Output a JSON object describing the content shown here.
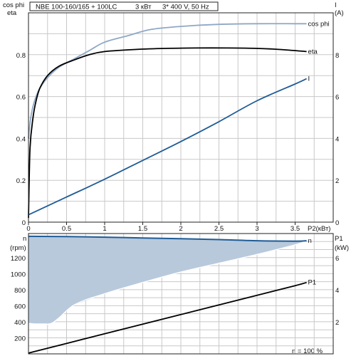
{
  "header": {
    "title": "NBE 100-160/165 + 100LC",
    "power": "3 кВт",
    "supply": "3* 400 V, 50 Hz"
  },
  "colors": {
    "cos_phi": "#8fa8c6",
    "eta": "#000000",
    "current": "#1f5c96",
    "speed": "#1f5c96",
    "speed_fill": "#b8c9dc",
    "p1": "#000000",
    "grid": "#c8c8c8"
  },
  "chart_data": [
    {
      "type": "line",
      "xlabel": "P2(кВт)",
      "ylabel_left": [
        "cos phi",
        "eta"
      ],
      "ylabel_right": [
        "I",
        "(A)"
      ],
      "xlim": [
        0,
        4.0
      ],
      "ylim_left": [
        0,
        1.0
      ],
      "ylim_right": [
        0,
        10
      ],
      "grid": true,
      "x_ticks": [
        "0",
        "0.5",
        "1",
        "1.5",
        "2",
        "2.5",
        "3",
        "3.5"
      ],
      "y_left_ticks": [
        "0",
        "0.2",
        "0.4",
        "0.6",
        "0.8"
      ],
      "y_right_ticks": [
        "0",
        "2",
        "4",
        "6",
        "8"
      ],
      "series": [
        {
          "name": "cos phi",
          "axis": "left",
          "x": [
            0.0,
            0.03,
            0.08,
            0.15,
            0.25,
            0.4,
            0.6,
            0.8,
            1.0,
            1.3,
            1.6,
            2.0,
            2.5,
            3.0,
            3.5,
            3.65
          ],
          "y": [
            0.4,
            0.5,
            0.58,
            0.64,
            0.69,
            0.74,
            0.78,
            0.82,
            0.86,
            0.89,
            0.92,
            0.935,
            0.945,
            0.948,
            0.948,
            0.948
          ]
        },
        {
          "name": "eta",
          "axis": "left",
          "x": [
            0.0,
            0.02,
            0.06,
            0.1,
            0.15,
            0.25,
            0.4,
            0.6,
            0.8,
            1.0,
            1.4,
            1.8,
            2.2,
            2.6,
            3.0,
            3.3,
            3.65
          ],
          "y": [
            0.02,
            0.35,
            0.5,
            0.58,
            0.64,
            0.7,
            0.745,
            0.775,
            0.8,
            0.815,
            0.825,
            0.83,
            0.832,
            0.832,
            0.83,
            0.825,
            0.815
          ]
        },
        {
          "name": "I",
          "axis": "right",
          "x": [
            0.0,
            0.5,
            1.0,
            1.5,
            2.0,
            2.5,
            3.0,
            3.5,
            3.65
          ],
          "y": [
            0.35,
            1.2,
            2.05,
            2.95,
            3.85,
            4.8,
            5.8,
            6.6,
            6.85
          ]
        }
      ]
    },
    {
      "type": "area",
      "ylabel_left": [
        "n",
        "(rpm)"
      ],
      "ylabel_right": [
        "P1",
        "(kW)"
      ],
      "xlim": [
        0,
        4.0
      ],
      "ylim_left": [
        0,
        1500
      ],
      "ylim_right": [
        0,
        7.5
      ],
      "grid": true,
      "y_left_ticks": [
        "200",
        "400",
        "600",
        "800",
        "1000",
        "1200"
      ],
      "y_right_ticks": [
        "2",
        "4",
        "6"
      ],
      "footer": "n = 100 %",
      "series": [
        {
          "name": "n",
          "role": "upper",
          "axis": "left",
          "x": [
            0.0,
            0.5,
            1.0,
            1.5,
            2.0,
            2.5,
            3.0,
            3.5,
            3.65
          ],
          "y": [
            1465,
            1462,
            1455,
            1445,
            1435,
            1425,
            1410,
            1405,
            1410
          ]
        },
        {
          "role": "lower",
          "axis": "left",
          "x": [
            0.0,
            0.3,
            0.6,
            1.0,
            1.5,
            2.0,
            2.5,
            3.0,
            3.5,
            3.65
          ],
          "y": [
            380,
            380,
            610,
            750,
            890,
            1020,
            1130,
            1240,
            1360,
            1410
          ]
        },
        {
          "name": "P1",
          "axis": "right",
          "x": [
            0.0,
            0.5,
            1.0,
            1.5,
            2.0,
            2.5,
            3.0,
            3.5,
            3.65
          ],
          "y": [
            0.05,
            0.65,
            1.25,
            1.85,
            2.45,
            3.05,
            3.65,
            4.25,
            4.45
          ]
        }
      ]
    }
  ]
}
